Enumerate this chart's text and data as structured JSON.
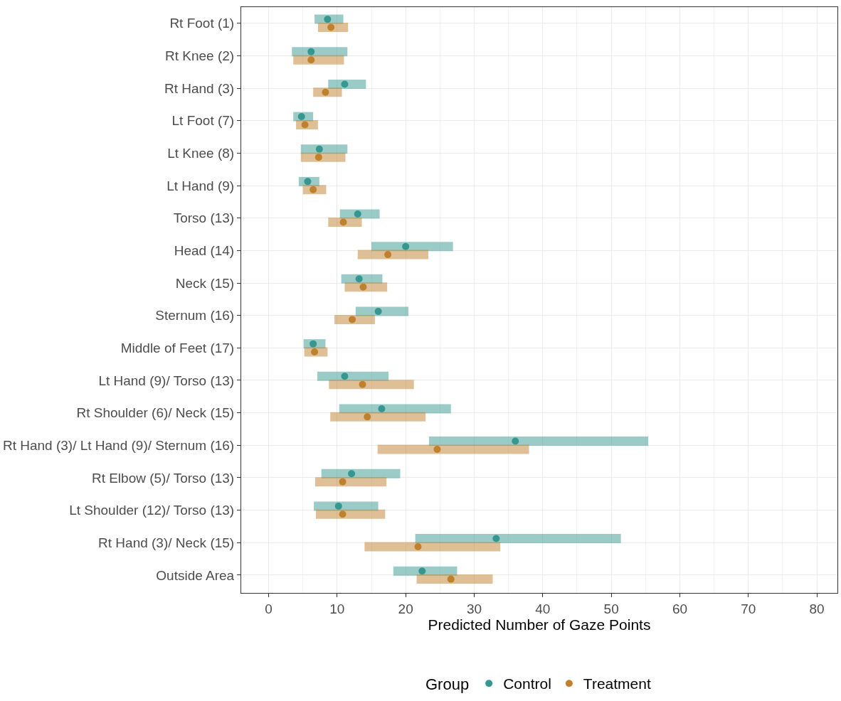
{
  "chart_data": {
    "type": "scatter",
    "xlabel": "Predicted Number of Gaze Points",
    "legend_title": "Group",
    "categories": [
      "Rt Foot (1)",
      "Rt Knee (2)",
      "Rt Hand (3)",
      "Lt Foot (7)",
      "Lt Knee (8)",
      "Lt Hand (9)",
      "Torso (13)",
      "Head (14)",
      "Neck (15)",
      "Sternum (16)",
      "Middle of Feet (17)",
      "Lt Hand (9)/ Torso (13)",
      "Rt Shoulder (6)/ Neck (15)",
      "Rt Hand (3)/ Lt Hand (9)/ Sternum (16)",
      "Rt Elbow (5)/ Torso (13)",
      "Lt Shoulder (12)/ Torso (13)",
      "Rt Hand (3)/ Neck (15)",
      "Outside Area"
    ],
    "orientation": "horizontal",
    "series": [
      {
        "name": "Control",
        "color": "#35978f",
        "values": [
          8.6,
          6.2,
          11.1,
          4.8,
          7.4,
          5.7,
          13.0,
          20.0,
          13.2,
          16.0,
          6.5,
          11.1,
          16.5,
          36.0,
          12.1,
          10.2,
          33.2,
          22.4
        ],
        "errors": [
          [
            6.7,
            10.9
          ],
          [
            3.4,
            11.5
          ],
          [
            8.7,
            14.2
          ],
          [
            3.6,
            6.5
          ],
          [
            4.7,
            11.5
          ],
          [
            4.4,
            7.4
          ],
          [
            10.4,
            16.2
          ],
          [
            15.0,
            26.9
          ],
          [
            10.6,
            16.6
          ],
          [
            12.7,
            20.4
          ],
          [
            5.1,
            8.3
          ],
          [
            7.1,
            17.5
          ],
          [
            10.3,
            26.6
          ],
          [
            23.4,
            55.4
          ],
          [
            7.7,
            19.2
          ],
          [
            6.6,
            16.0
          ],
          [
            21.4,
            51.4
          ],
          [
            18.2,
            27.5
          ]
        ]
      },
      {
        "name": "Treatment",
        "color": "#bf812d",
        "values": [
          9.1,
          6.2,
          8.3,
          5.3,
          7.3,
          6.5,
          10.9,
          17.4,
          13.8,
          12.2,
          6.7,
          13.7,
          14.4,
          24.6,
          10.8,
          10.8,
          21.8,
          26.6
        ],
        "errors": [
          [
            7.2,
            11.6
          ],
          [
            3.6,
            11.0
          ],
          [
            6.5,
            10.7
          ],
          [
            4.0,
            7.2
          ],
          [
            4.7,
            11.2
          ],
          [
            5.0,
            8.4
          ],
          [
            8.7,
            13.6
          ],
          [
            13.0,
            23.3
          ],
          [
            11.1,
            17.3
          ],
          [
            9.6,
            15.5
          ],
          [
            5.2,
            8.6
          ],
          [
            8.8,
            21.2
          ],
          [
            9.0,
            22.9
          ],
          [
            15.9,
            38.0
          ],
          [
            6.8,
            17.2
          ],
          [
            6.9,
            17.0
          ],
          [
            14.0,
            33.8
          ],
          [
            21.6,
            32.7
          ]
        ]
      }
    ],
    "xlim": [
      -4,
      83
    ],
    "xticks": [
      0,
      10,
      20,
      30,
      40,
      50,
      60,
      70,
      80
    ],
    "grid": true,
    "legend": "bottom",
    "marker": "circle"
  }
}
